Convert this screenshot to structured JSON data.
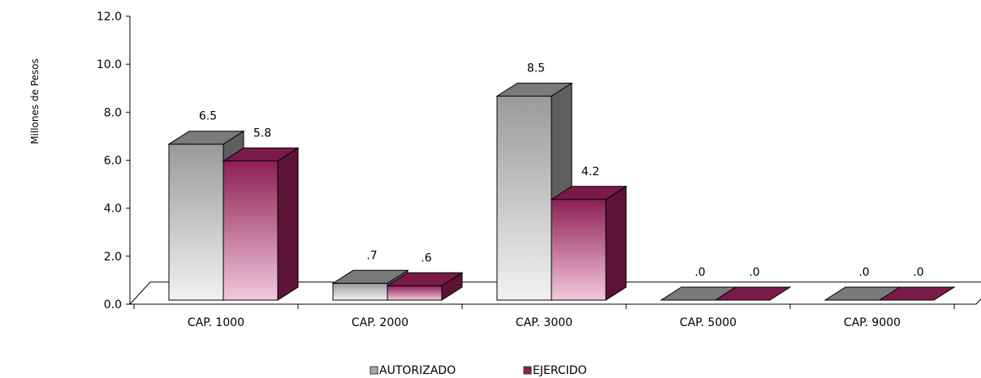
{
  "chart_data": {
    "type": "bar",
    "ylabel": "Millones de Pesos",
    "ylim": [
      0,
      12
    ],
    "yticks": [
      "0.0",
      "2.0",
      "4.0",
      "6.0",
      "8.0",
      "10.0",
      "12.0"
    ],
    "categories": [
      "CAP. 1000",
      "CAP. 2000",
      "CAP. 3000",
      "CAP. 5000",
      "CAP. 9000"
    ],
    "series": [
      {
        "name": "AUTORIZADO",
        "values": [
          6.5,
          0.7,
          8.5,
          0.0,
          0.0
        ],
        "labels": [
          "6.5",
          ".7",
          "8.5",
          ".0",
          ".0"
        ],
        "color": "#a8a8a8"
      },
      {
        "name": "EJERCIDO",
        "values": [
          5.8,
          0.6,
          4.2,
          0.0,
          0.0
        ],
        "labels": [
          "5.8",
          ".6",
          "4.2",
          ".0",
          ".0"
        ],
        "color": "#8b1f52"
      }
    ],
    "legend_position": "bottom",
    "grid": false,
    "style": "3d-column"
  }
}
